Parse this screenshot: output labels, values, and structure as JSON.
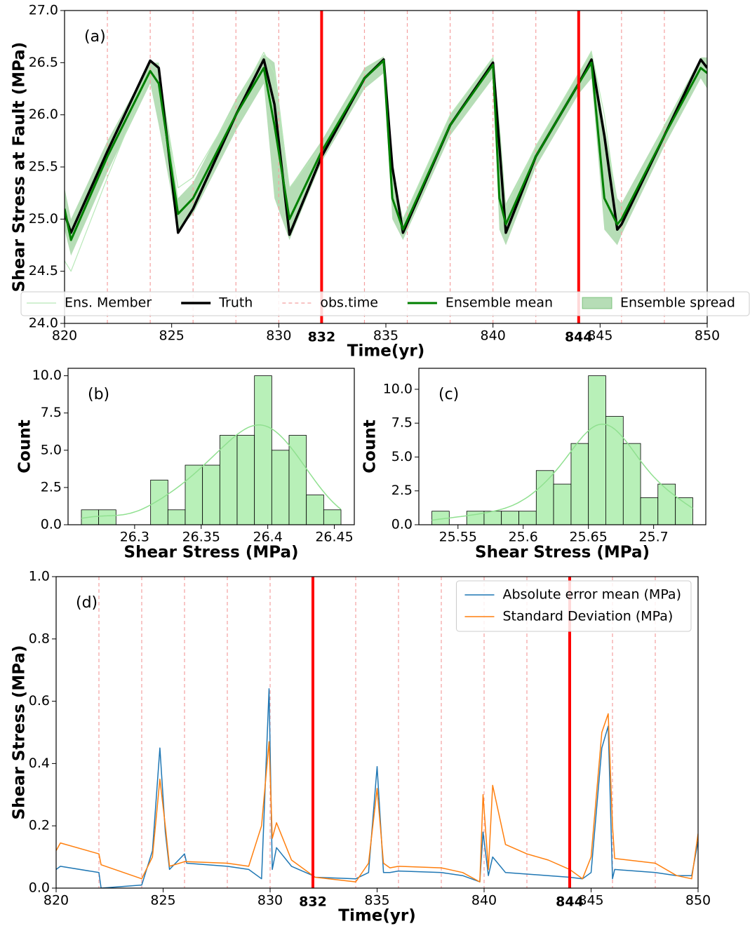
{
  "chart_data": [
    {
      "type": "line",
      "panel_label": "(a)",
      "xlabel": "Time(yr)",
      "ylabel": "Shear Stress at Fault (MPa)",
      "x": [
        820,
        820.3,
        822,
        824,
        824.4,
        825.3,
        826,
        828,
        829.3,
        829.8,
        830.5,
        832,
        834,
        834.9,
        835.3,
        835.8,
        838,
        840,
        840.3,
        840.6,
        842,
        844,
        844.6,
        845.2,
        845.8,
        846,
        848,
        849.7,
        850
      ],
      "xlim": [
        820,
        850
      ],
      "xticks": [
        820,
        825,
        830,
        835,
        840,
        845,
        850
      ],
      "ylim": [
        24,
        27
      ],
      "yticks": [
        {
          "value": 24,
          "label": "24.0"
        },
        24.5,
        {
          "value": 25,
          "label": "25.0"
        },
        25.5,
        {
          "value": 26,
          "label": "26.0"
        },
        26.5,
        {
          "value": 27,
          "label": "27.0"
        }
      ],
      "obs_times": [
        822,
        824,
        826,
        828,
        830,
        834,
        836,
        838,
        840,
        842,
        846,
        848
      ],
      "obs_name": "obs.time",
      "obs_color": "#f4a0a0",
      "assim_times": [
        832,
        844
      ],
      "assim_color": "#ff0000",
      "series": [
        {
          "name": "Ens. Member",
          "color": "#b8e8b8",
          "width": 1.2,
          "values": [
            24.6,
            24.5,
            25.4,
            26.4,
            26.4,
            25.3,
            25.4,
            26.1,
            26.6,
            26.4,
            25.3,
            25.7,
            26.4,
            26.5,
            25.3,
            25.0,
            26.0,
            26.55,
            25.9,
            25.1,
            25.7,
            26.4,
            26.6,
            26.0,
            25.1,
            25.0,
            25.9,
            26.5,
            26.5
          ]
        },
        {
          "name": "Truth",
          "color": "#000000",
          "width": 3.5,
          "values": [
            25.05,
            24.87,
            25.65,
            26.52,
            26.45,
            24.87,
            25.1,
            26.0,
            26.53,
            26.1,
            24.85,
            25.6,
            26.35,
            26.53,
            25.5,
            24.87,
            25.9,
            26.5,
            25.7,
            24.87,
            25.6,
            26.3,
            26.53,
            25.8,
            24.9,
            24.95,
            25.8,
            26.53,
            26.45
          ]
        },
        {
          "name": "Ensemble mean",
          "color": "#008000",
          "width": 3,
          "values": [
            25.1,
            24.8,
            25.6,
            26.42,
            26.3,
            25.05,
            25.2,
            26.0,
            26.45,
            25.9,
            25.0,
            25.65,
            26.35,
            26.52,
            25.2,
            24.9,
            25.9,
            26.48,
            25.2,
            24.95,
            25.6,
            26.3,
            26.5,
            25.2,
            24.95,
            25.0,
            25.8,
            26.45,
            26.4
          ]
        }
      ],
      "spread": {
        "name": "Ensemble spread",
        "color": "#2e9e2e",
        "lower": [
          24.9,
          24.65,
          25.45,
          26.3,
          25.9,
          24.9,
          25.05,
          25.85,
          26.3,
          25.2,
          24.8,
          25.55,
          26.25,
          26.4,
          25.0,
          24.8,
          25.8,
          26.35,
          24.9,
          24.75,
          25.5,
          26.2,
          26.35,
          24.9,
          24.75,
          24.85,
          25.7,
          26.35,
          26.25
        ],
        "upper": [
          25.3,
          25.0,
          25.75,
          26.5,
          26.5,
          25.2,
          25.35,
          26.15,
          26.58,
          26.5,
          25.3,
          25.75,
          26.45,
          26.56,
          25.5,
          25.0,
          26.0,
          26.55,
          25.9,
          25.15,
          25.7,
          26.4,
          26.62,
          25.9,
          25.2,
          25.15,
          25.9,
          26.55,
          26.55
        ]
      },
      "legend": "lower center"
    },
    {
      "type": "histogram",
      "panel_label": "(b)",
      "xlabel": "Shear Stress (MPa)",
      "ylabel": "Count",
      "bins": [
        26.26,
        26.273,
        26.286,
        26.299,
        26.312,
        26.325,
        26.338,
        26.351,
        26.364,
        26.377,
        26.39,
        26.403,
        26.416,
        26.429,
        26.442,
        26.455
      ],
      "counts": [
        1,
        1,
        0,
        0,
        3,
        1,
        4,
        4,
        6,
        6,
        10,
        5,
        6,
        2,
        1
      ],
      "color": "#b8f0b8",
      "edge_color": "#000000",
      "kde": true,
      "kde_color": "#90e090",
      "xlim": [
        26.25,
        26.465
      ],
      "xticks": [
        26.3,
        26.35,
        26.4,
        26.45
      ],
      "ylim": [
        0,
        10.5
      ],
      "yticks": [
        {
          "value": 0,
          "label": "0.0"
        },
        2.5,
        {
          "value": 5,
          "label": "5.0"
        },
        7.5,
        {
          "value": 10,
          "label": "10.0"
        }
      ]
    },
    {
      "type": "histogram",
      "panel_label": "(c)",
      "xlabel": "Shear Stress (MPa)",
      "ylabel": "Count",
      "bins": [
        25.53,
        25.5433,
        25.5567,
        25.57,
        25.5833,
        25.5967,
        25.61,
        25.6233,
        25.6367,
        25.65,
        25.6633,
        25.6767,
        25.69,
        25.7033,
        25.7167,
        25.73
      ],
      "counts": [
        1,
        0,
        1,
        1,
        1,
        1,
        4,
        3,
        6,
        11,
        8,
        6,
        2,
        3,
        2
      ],
      "color": "#b8f0b8",
      "edge_color": "#000000",
      "kde": true,
      "kde_color": "#90e090",
      "xlim": [
        25.52,
        25.74
      ],
      "xticks": [
        25.55,
        25.6,
        25.65,
        25.7
      ],
      "ylim": [
        0,
        11.55
      ],
      "yticks": [
        {
          "value": 0,
          "label": "0.0"
        },
        2.5,
        {
          "value": 5,
          "label": "5.0"
        },
        7.5,
        {
          "value": 10,
          "label": "10.0"
        }
      ]
    },
    {
      "type": "line",
      "panel_label": "(d)",
      "xlabel": "Time(yr)",
      "ylabel": "Shear Stress (MPa)",
      "x": [
        820,
        820.2,
        822,
        822.1,
        824,
        824.5,
        824.85,
        825.1,
        825.3,
        826,
        826.1,
        828,
        829,
        829.6,
        829.95,
        830.1,
        830.3,
        831,
        832,
        832.1,
        834,
        834.6,
        835,
        835.3,
        835.6,
        836,
        838,
        839,
        839.8,
        839.95,
        840.2,
        840.4,
        841,
        842,
        843,
        844,
        844.6,
        845,
        845.5,
        845.8,
        846,
        846.1,
        848,
        849,
        849.7,
        850
      ],
      "xlim": [
        820,
        850
      ],
      "xticks": [
        820,
        825,
        830,
        835,
        840,
        845,
        850
      ],
      "ylim": [
        0,
        1
      ],
      "yticks": [
        {
          "value": 0,
          "label": "0.0"
        },
        0.2,
        0.4,
        0.6,
        0.8,
        {
          "value": 1,
          "label": "1.0"
        }
      ],
      "obs_times": [
        822,
        824,
        826,
        828,
        830,
        834,
        836,
        838,
        840,
        842,
        846,
        848
      ],
      "obs_color": "#f4a0a0",
      "assim_times": [
        832,
        844
      ],
      "assim_color": "#ff0000",
      "series": [
        {
          "name": "Absolute error mean (MPa)",
          "color": "#1f77b4",
          "width": 1.5,
          "values": [
            0.06,
            0.07,
            0.05,
            0.0,
            0.01,
            0.12,
            0.45,
            0.18,
            0.06,
            0.11,
            0.08,
            0.07,
            0.06,
            0.03,
            0.64,
            0.06,
            0.13,
            0.07,
            0.04,
            0.035,
            0.03,
            0.05,
            0.39,
            0.05,
            0.05,
            0.055,
            0.05,
            0.04,
            0.02,
            0.18,
            0.04,
            0.1,
            0.05,
            0.045,
            0.04,
            0.035,
            0.03,
            0.05,
            0.45,
            0.52,
            0.03,
            0.06,
            0.05,
            0.04,
            0.04,
            0.15
          ]
        },
        {
          "name": "Standard Deviation (MPa)",
          "color": "#ff7f0e",
          "width": 1.5,
          "values": [
            0.12,
            0.145,
            0.11,
            0.075,
            0.03,
            0.1,
            0.35,
            0.2,
            0.07,
            0.085,
            0.085,
            0.08,
            0.07,
            0.2,
            0.47,
            0.16,
            0.21,
            0.09,
            0.04,
            0.035,
            0.02,
            0.08,
            0.32,
            0.08,
            0.065,
            0.07,
            0.065,
            0.05,
            0.02,
            0.3,
            0.06,
            0.33,
            0.14,
            0.11,
            0.09,
            0.06,
            0.03,
            0.1,
            0.5,
            0.56,
            0.2,
            0.095,
            0.08,
            0.04,
            0.03,
            0.175
          ]
        }
      ],
      "legend": "upper right"
    }
  ]
}
